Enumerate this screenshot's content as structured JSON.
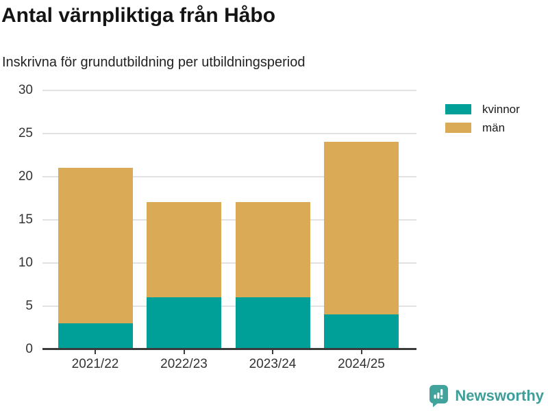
{
  "header": {
    "title": "Antal värnpliktiga från Håbo",
    "subtitle": "Inskrivna för grundutbildning per utbildningsperiod"
  },
  "chart_data": {
    "type": "bar",
    "stacked": true,
    "title": "Antal värnpliktiga från Håbo",
    "subtitle": "Inskrivna för grundutbildning per utbildningsperiod",
    "categories": [
      "2021/22",
      "2022/23",
      "2023/24",
      "2024/25"
    ],
    "series": [
      {
        "name": "kvinnor",
        "color": "#00a099",
        "values": [
          3,
          6,
          6,
          4
        ]
      },
      {
        "name": "män",
        "color": "#dbaa57",
        "values": [
          18,
          11,
          11,
          20
        ]
      }
    ],
    "totals": [
      21,
      17,
      17,
      24
    ],
    "xlabel": "",
    "ylabel": "",
    "ylim": [
      0,
      30
    ],
    "yticks": [
      0,
      5,
      10,
      15,
      20,
      25,
      30
    ],
    "grid": true,
    "legend_position": "top-right",
    "colors": {
      "gridline": "#e2e2e2",
      "axis": "#3a3a3a",
      "tick_text": "#333333"
    }
  },
  "footer": {
    "brand": "Newsworthy",
    "brand_color": "#3e9e99",
    "logo_icon": "bar-chart-speech-bubble-icon"
  }
}
